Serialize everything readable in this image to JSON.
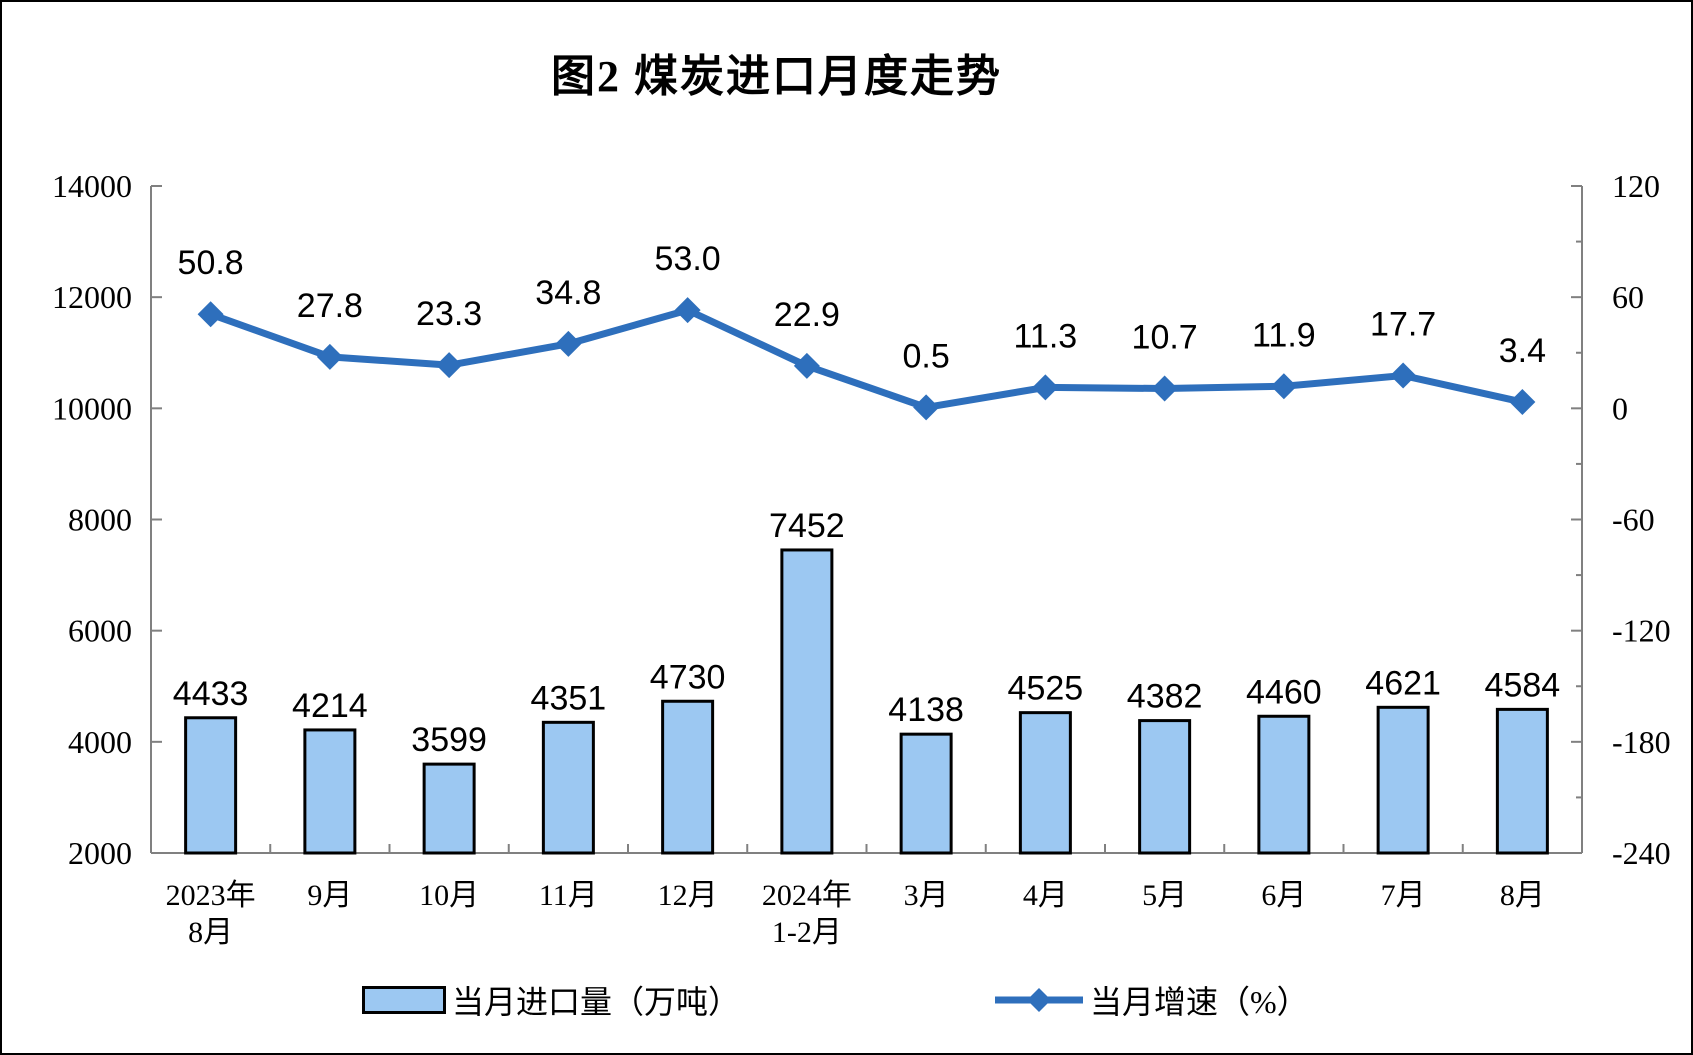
{
  "chart_data": {
    "type": "bar+line combo",
    "title": "图2 煤炭进口月度走势",
    "categories": [
      [
        "2023年",
        "8月"
      ],
      [
        "9月"
      ],
      [
        "10月"
      ],
      [
        "11月"
      ],
      [
        "12月"
      ],
      [
        "2024年",
        "1-2月"
      ],
      [
        "3月"
      ],
      [
        "4月"
      ],
      [
        "5月"
      ],
      [
        "6月"
      ],
      [
        "7月"
      ],
      [
        "8月"
      ]
    ],
    "series": [
      {
        "name": "当月进口量（万吨）",
        "type": "bar",
        "axis": "left",
        "unit": "万吨",
        "values": [
          4433,
          4214,
          3599,
          4351,
          4730,
          7452,
          4138,
          4525,
          4382,
          4460,
          4621,
          4584
        ]
      },
      {
        "name": "当月增速（%）",
        "type": "line",
        "axis": "right",
        "unit": "%",
        "values": [
          50.8,
          27.8,
          23.3,
          34.8,
          53.0,
          22.9,
          0.5,
          11.3,
          10.7,
          11.9,
          17.7,
          3.4
        ]
      }
    ],
    "left_axis": {
      "min": 2000,
      "max": 14000,
      "major_unit": 2000,
      "ticks": [
        2000,
        4000,
        6000,
        8000,
        10000,
        12000,
        14000
      ]
    },
    "right_axis": {
      "min": -240,
      "max": 120,
      "major_unit": 60,
      "minor_unit": 30,
      "ticks": [
        -240,
        -180,
        -120,
        -60,
        0,
        60,
        120
      ]
    },
    "legend_position": "bottom",
    "grid": false,
    "colors": {
      "bar_fill": "#9CC8F2",
      "bar_border": "#000000",
      "line": "#2E6FBC",
      "axis": "#808080",
      "text": "#000000"
    }
  }
}
